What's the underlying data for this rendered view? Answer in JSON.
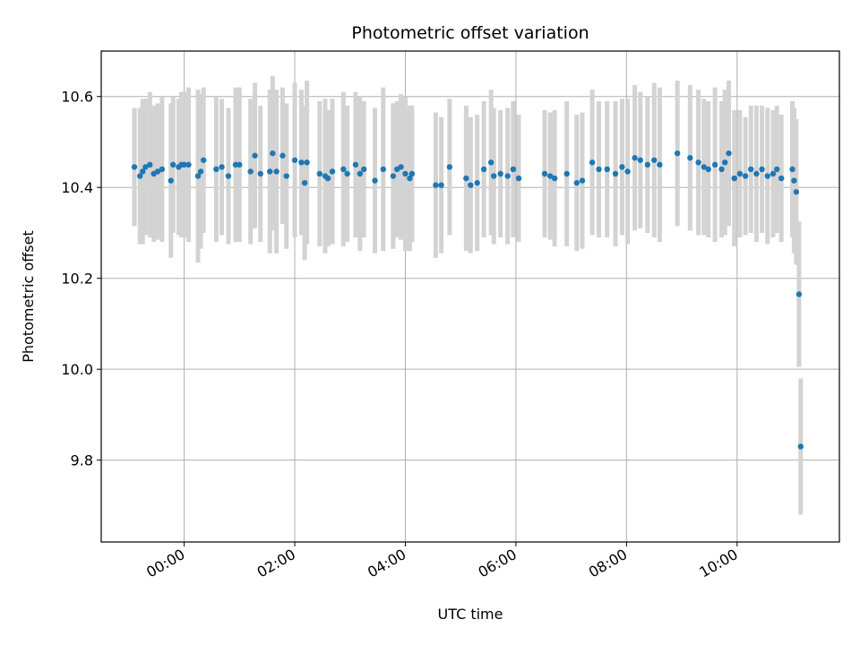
{
  "chart_data": {
    "type": "scatter",
    "title": "Photometric offset variation",
    "xlabel": "UTC time",
    "ylabel": "Photometric offset",
    "x_unit": "hours",
    "xlim": [
      -1.5,
      11.85
    ],
    "ylim": [
      9.62,
      10.7
    ],
    "grid": true,
    "x_ticks": [
      {
        "label": "00:00",
        "value": 0
      },
      {
        "label": "02:00",
        "value": 2
      },
      {
        "label": "04:00",
        "value": 4
      },
      {
        "label": "06:00",
        "value": 6
      },
      {
        "label": "08:00",
        "value": 8
      },
      {
        "label": "10:00",
        "value": 10
      }
    ],
    "y_ticks": [
      {
        "label": "9.8",
        "value": 9.8
      },
      {
        "label": "10.0",
        "value": 10.0
      },
      {
        "label": "10.2",
        "value": 10.2
      },
      {
        "label": "10.4",
        "value": 10.4
      },
      {
        "label": "10.6",
        "value": 10.6
      }
    ],
    "colors": {
      "points": "#1f77b4",
      "errorbars": "#d3d3d3"
    },
    "series": [
      {
        "x": [
          -0.9,
          -0.8,
          -0.75,
          -0.7,
          -0.62,
          -0.55,
          -0.48,
          -0.4,
          -0.24,
          -0.2,
          -0.1,
          -0.05,
          0.0,
          0.08,
          0.25,
          0.3,
          0.35,
          0.58,
          0.68,
          0.8,
          0.93,
          1.0,
          1.2,
          1.28,
          1.38,
          1.55,
          1.6,
          1.67,
          1.78,
          1.85,
          2.0,
          2.12,
          2.18,
          2.22,
          2.45,
          2.55,
          2.6,
          2.68,
          2.88,
          2.95,
          3.1,
          3.18,
          3.25,
          3.45,
          3.6,
          3.78,
          3.85,
          3.92,
          4.0,
          4.08,
          4.12,
          4.55,
          4.65,
          4.8,
          5.1,
          5.18,
          5.3,
          5.42,
          5.55,
          5.6,
          5.72,
          5.85,
          5.95,
          6.05,
          6.52,
          6.62,
          6.7,
          6.92,
          7.1,
          7.2,
          7.38,
          7.5,
          7.65,
          7.8,
          7.92,
          8.02,
          8.15,
          8.25,
          8.38,
          8.5,
          8.6,
          8.92,
          9.15,
          9.3,
          9.4,
          9.48,
          9.6,
          9.72,
          9.78,
          9.85,
          9.95,
          10.05,
          10.15,
          10.25,
          10.35,
          10.45,
          10.55,
          10.65,
          10.72,
          10.8,
          11.0,
          11.03,
          11.07,
          11.12,
          11.15
        ],
        "y": [
          10.445,
          10.425,
          10.435,
          10.445,
          10.45,
          10.43,
          10.435,
          10.44,
          10.415,
          10.45,
          10.445,
          10.45,
          10.45,
          10.45,
          10.425,
          10.435,
          10.46,
          10.44,
          10.445,
          10.425,
          10.45,
          10.45,
          10.435,
          10.47,
          10.43,
          10.435,
          10.475,
          10.435,
          10.47,
          10.425,
          10.46,
          10.455,
          10.41,
          10.455,
          10.43,
          10.425,
          10.42,
          10.435,
          10.44,
          10.43,
          10.45,
          10.43,
          10.44,
          10.415,
          10.44,
          10.425,
          10.44,
          10.445,
          10.43,
          10.42,
          10.43,
          10.405,
          10.405,
          10.445,
          10.42,
          10.405,
          10.41,
          10.44,
          10.455,
          10.425,
          10.43,
          10.425,
          10.44,
          10.42,
          10.43,
          10.425,
          10.42,
          10.43,
          10.41,
          10.415,
          10.455,
          10.44,
          10.44,
          10.43,
          10.445,
          10.435,
          10.465,
          10.46,
          10.45,
          10.46,
          10.45,
          10.475,
          10.465,
          10.455,
          10.445,
          10.44,
          10.45,
          10.44,
          10.455,
          10.475,
          10.42,
          10.43,
          10.425,
          10.44,
          10.43,
          10.44,
          10.425,
          10.43,
          10.44,
          10.42,
          10.44,
          10.415,
          10.39,
          10.165,
          9.83
        ],
        "yerr": [
          0.13,
          0.15,
          0.16,
          0.15,
          0.16,
          0.15,
          0.15,
          0.16,
          0.17,
          0.15,
          0.15,
          0.16,
          0.16,
          0.17,
          0.19,
          0.17,
          0.16,
          0.16,
          0.15,
          0.15,
          0.17,
          0.17,
          0.16,
          0.16,
          0.15,
          0.18,
          0.17,
          0.18,
          0.15,
          0.16,
          0.17,
          0.16,
          0.17,
          0.18,
          0.16,
          0.17,
          0.15,
          0.16,
          0.17,
          0.15,
          0.16,
          0.17,
          0.15,
          0.16,
          0.18,
          0.16,
          0.15,
          0.16,
          0.17,
          0.16,
          0.15,
          0.16,
          0.15,
          0.15,
          0.16,
          0.15,
          0.15,
          0.15,
          0.16,
          0.15,
          0.14,
          0.15,
          0.15,
          0.14,
          0.14,
          0.14,
          0.15,
          0.16,
          0.15,
          0.15,
          0.16,
          0.15,
          0.15,
          0.16,
          0.15,
          0.16,
          0.16,
          0.15,
          0.15,
          0.17,
          0.17,
          0.16,
          0.16,
          0.16,
          0.15,
          0.15,
          0.17,
          0.15,
          0.16,
          0.16,
          0.15,
          0.14,
          0.13,
          0.14,
          0.15,
          0.14,
          0.15,
          0.14,
          0.14,
          0.14,
          0.15,
          0.16,
          0.16,
          0.16,
          0.15
        ]
      }
    ]
  }
}
